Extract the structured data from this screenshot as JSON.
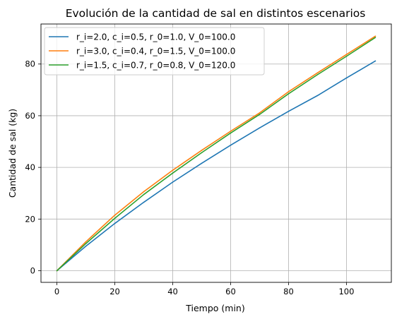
{
  "chart_data": {
    "type": "line",
    "title": "Evolución de la cantidad de sal en distintos escenarios",
    "xlabel": "Tiempo (min)",
    "ylabel": "Cantidad de sal (kg)",
    "xlim": [
      -5.5,
      115.5
    ],
    "ylim": [
      -4.5,
      95.5
    ],
    "xticks": [
      0,
      20,
      40,
      60,
      80,
      100
    ],
    "yticks": [
      0,
      20,
      40,
      60,
      80
    ],
    "grid": true,
    "legend_position": "top-left",
    "x": [
      0,
      10,
      20,
      30,
      40,
      50,
      60,
      70,
      80,
      90,
      100,
      110
    ],
    "series": [
      {
        "name": "r_i=2.0, c_i=0.5, r_0=1.0, V_0=100.0",
        "color": "#1f77b4",
        "values": [
          0,
          9.5,
          18.3,
          26.5,
          34.3,
          41.6,
          48.6,
          55.3,
          61.7,
          67.8,
          74.6,
          81.2
        ]
      },
      {
        "name": "r_i=3.0, c_i=0.4, r_0=1.5, V_0=100.0",
        "color": "#ff7f0e",
        "values": [
          0,
          11.2,
          21.5,
          30.6,
          38.9,
          46.6,
          54.0,
          61.1,
          69.3,
          76.6,
          83.7,
          90.8
        ]
      },
      {
        "name": "r_i=1.5, c_i=0.7, r_0=0.8, V_0=120.0",
        "color": "#2ca02c",
        "values": [
          0,
          10.5,
          20.3,
          29.5,
          37.8,
          45.7,
          53.3,
          60.5,
          68.5,
          75.9,
          83.0,
          90.3
        ]
      }
    ]
  }
}
